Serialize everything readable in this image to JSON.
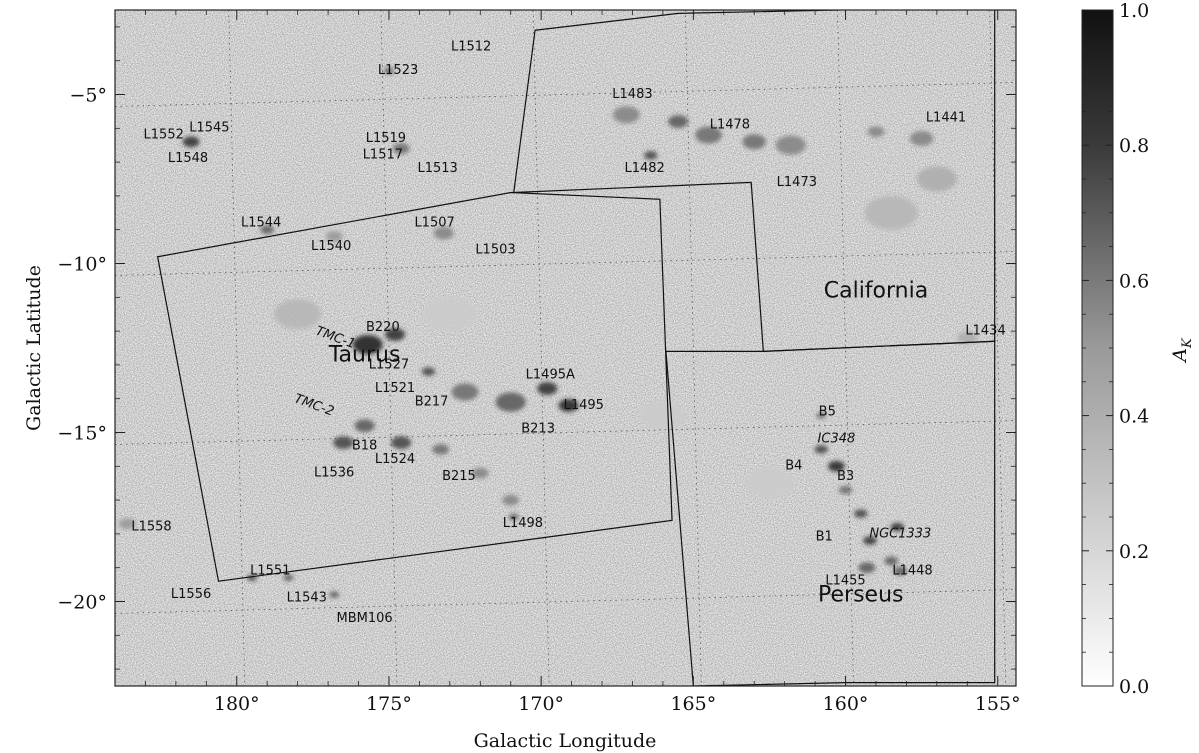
{
  "chart_data": {
    "type": "heatmap",
    "xlabel": "Galactic Longitude",
    "ylabel": "Galactic Latitude",
    "xlim": [
      184,
      154.4
    ],
    "ylim": [
      -22.5,
      -2.5
    ],
    "x_ticks": [
      180,
      175,
      170,
      165,
      160,
      155
    ],
    "x_tick_labels": [
      "180°",
      "175°",
      "170°",
      "165°",
      "160°",
      "155°"
    ],
    "y_ticks": [
      -5,
      -10,
      -15,
      -20
    ],
    "y_tick_labels": [
      "−5°",
      "−10°",
      "−15°",
      "−20°"
    ],
    "colorbar": {
      "label_main": "A",
      "label_sub": "K",
      "range": [
        0.0,
        1.0
      ],
      "ticks": [
        0.0,
        0.2,
        0.4,
        0.6,
        0.8,
        1.0
      ],
      "tick_labels": [
        "0.0",
        "0.2",
        "0.4",
        "0.6",
        "0.8",
        "1.0"
      ],
      "color_min": "#ffffff",
      "color_max": "#111111"
    },
    "region_labels": [
      {
        "name": "Taurus",
        "l": 175.8,
        "b": -12.9
      },
      {
        "name": "California",
        "l": 159.0,
        "b": -11.0
      },
      {
        "name": "Perseus",
        "l": 159.5,
        "b": -20.0
      }
    ],
    "cloud_labels": [
      {
        "name": "L1512",
        "l": 172.3,
        "b": -3.7
      },
      {
        "name": "L1523",
        "l": 174.7,
        "b": -4.4
      },
      {
        "name": "L1483",
        "l": 167.0,
        "b": -5.1
      },
      {
        "name": "L1478",
        "l": 163.8,
        "b": -6.0
      },
      {
        "name": "L1441",
        "l": 156.7,
        "b": -5.8
      },
      {
        "name": "L1552",
        "l": 182.4,
        "b": -6.3
      },
      {
        "name": "L1545",
        "l": 180.9,
        "b": -6.1
      },
      {
        "name": "L1548",
        "l": 181.6,
        "b": -7.0
      },
      {
        "name": "L1519",
        "l": 175.1,
        "b": -6.4
      },
      {
        "name": "L1517",
        "l": 175.2,
        "b": -6.9
      },
      {
        "name": "L1513",
        "l": 173.4,
        "b": -7.3
      },
      {
        "name": "L1482",
        "l": 166.6,
        "b": -7.3
      },
      {
        "name": "L1473",
        "l": 161.6,
        "b": -7.7
      },
      {
        "name": "L1544",
        "l": 179.2,
        "b": -8.9
      },
      {
        "name": "L1540",
        "l": 176.9,
        "b": -9.6
      },
      {
        "name": "L1507",
        "l": 173.5,
        "b": -8.9
      },
      {
        "name": "L1503",
        "l": 171.5,
        "b": -9.7
      },
      {
        "name": "L1434",
        "l": 155.4,
        "b": -12.1
      },
      {
        "name": "B220",
        "l": 175.2,
        "b": -12.0
      },
      {
        "name": "TMC-1",
        "l": 176.8,
        "b": -12.3,
        "italic": true,
        "rotate": 20
      },
      {
        "name": "L1527",
        "l": 175.0,
        "b": -13.1
      },
      {
        "name": "L1521",
        "l": 174.8,
        "b": -13.8
      },
      {
        "name": "L1495A",
        "l": 169.7,
        "b": -13.4
      },
      {
        "name": "TMC-2",
        "l": 177.5,
        "b": -14.3,
        "italic": true,
        "rotate": 20
      },
      {
        "name": "B217",
        "l": 173.6,
        "b": -14.2
      },
      {
        "name": "L1495",
        "l": 168.6,
        "b": -14.3
      },
      {
        "name": "B213",
        "l": 170.1,
        "b": -15.0
      },
      {
        "name": "B5",
        "l": 160.6,
        "b": -14.5
      },
      {
        "name": "IC348",
        "l": 160.3,
        "b": -15.3,
        "italic": true
      },
      {
        "name": "B18",
        "l": 175.8,
        "b": -15.5
      },
      {
        "name": "L1524",
        "l": 174.8,
        "b": -15.9
      },
      {
        "name": "B4",
        "l": 161.7,
        "b": -16.1
      },
      {
        "name": "B3",
        "l": 160.0,
        "b": -16.4
      },
      {
        "name": "L1536",
        "l": 176.8,
        "b": -16.3
      },
      {
        "name": "B215",
        "l": 172.7,
        "b": -16.4
      },
      {
        "name": "L1498",
        "l": 170.6,
        "b": -17.8
      },
      {
        "name": "B1",
        "l": 160.7,
        "b": -18.2
      },
      {
        "name": "NGC1333",
        "l": 158.2,
        "b": -18.1,
        "italic": true
      },
      {
        "name": "L1558",
        "l": 182.8,
        "b": -17.9
      },
      {
        "name": "L1448",
        "l": 157.8,
        "b": -19.2
      },
      {
        "name": "L1455",
        "l": 160.0,
        "b": -19.5
      },
      {
        "name": "L1551",
        "l": 178.9,
        "b": -19.2
      },
      {
        "name": "L1556",
        "l": 181.5,
        "b": -19.9
      },
      {
        "name": "L1543",
        "l": 177.7,
        "b": -20.0
      },
      {
        "name": "MBM106",
        "l": 175.8,
        "b": -20.6
      }
    ],
    "dark_clumps": [
      {
        "l": 175.7,
        "b": -12.4,
        "s": 0.9,
        "v": 1.0
      },
      {
        "l": 174.8,
        "b": -12.1,
        "s": 0.6,
        "v": 0.9
      },
      {
        "l": 173.7,
        "b": -13.2,
        "s": 0.4,
        "v": 0.8
      },
      {
        "l": 169.8,
        "b": -13.7,
        "s": 0.6,
        "v": 0.9
      },
      {
        "l": 169.1,
        "b": -14.2,
        "s": 0.6,
        "v": 0.95
      },
      {
        "l": 171.0,
        "b": -14.1,
        "s": 0.9,
        "v": 0.7
      },
      {
        "l": 172.5,
        "b": -13.8,
        "s": 0.8,
        "v": 0.6
      },
      {
        "l": 176.5,
        "b": -15.3,
        "s": 0.6,
        "v": 0.8
      },
      {
        "l": 175.8,
        "b": -14.8,
        "s": 0.6,
        "v": 0.7
      },
      {
        "l": 174.6,
        "b": -15.3,
        "s": 0.6,
        "v": 0.8
      },
      {
        "l": 173.3,
        "b": -15.5,
        "s": 0.5,
        "v": 0.6
      },
      {
        "l": 172.0,
        "b": -16.2,
        "s": 0.5,
        "v": 0.5
      },
      {
        "l": 171.0,
        "b": -17.0,
        "s": 0.5,
        "v": 0.5
      },
      {
        "l": 170.9,
        "b": -17.5,
        "s": 0.3,
        "v": 0.7
      },
      {
        "l": 181.5,
        "b": -6.4,
        "s": 0.5,
        "v": 0.9
      },
      {
        "l": 179.0,
        "b": -9.0,
        "s": 0.4,
        "v": 0.7
      },
      {
        "l": 176.8,
        "b": -9.2,
        "s": 0.5,
        "v": 0.4
      },
      {
        "l": 173.2,
        "b": -9.1,
        "s": 0.6,
        "v": 0.5
      },
      {
        "l": 174.6,
        "b": -6.6,
        "s": 0.5,
        "v": 0.6
      },
      {
        "l": 175.0,
        "b": -4.3,
        "s": 0.3,
        "v": 0.7
      },
      {
        "l": 167.2,
        "b": -5.6,
        "s": 0.8,
        "v": 0.5
      },
      {
        "l": 166.4,
        "b": -6.8,
        "s": 0.4,
        "v": 0.8
      },
      {
        "l": 165.5,
        "b": -5.8,
        "s": 0.6,
        "v": 0.7
      },
      {
        "l": 164.5,
        "b": -6.2,
        "s": 0.8,
        "v": 0.6
      },
      {
        "l": 163.0,
        "b": -6.4,
        "s": 0.7,
        "v": 0.6
      },
      {
        "l": 161.8,
        "b": -6.5,
        "s": 0.9,
        "v": 0.5
      },
      {
        "l": 157.5,
        "b": -6.3,
        "s": 0.7,
        "v": 0.5
      },
      {
        "l": 159.0,
        "b": -6.1,
        "s": 0.5,
        "v": 0.5
      },
      {
        "l": 158.5,
        "b": -8.5,
        "s": 1.6,
        "v": 0.25
      },
      {
        "l": 157.0,
        "b": -7.5,
        "s": 1.2,
        "v": 0.3
      },
      {
        "l": 160.8,
        "b": -14.5,
        "s": 0.3,
        "v": 0.6
      },
      {
        "l": 160.8,
        "b": -15.5,
        "s": 0.4,
        "v": 0.8
      },
      {
        "l": 160.3,
        "b": -16.0,
        "s": 0.5,
        "v": 0.95
      },
      {
        "l": 160.0,
        "b": -16.7,
        "s": 0.4,
        "v": 0.6
      },
      {
        "l": 159.5,
        "b": -17.4,
        "s": 0.4,
        "v": 0.8
      },
      {
        "l": 159.2,
        "b": -18.2,
        "s": 0.4,
        "v": 0.9
      },
      {
        "l": 158.3,
        "b": -17.8,
        "s": 0.4,
        "v": 0.9
      },
      {
        "l": 158.5,
        "b": -18.8,
        "s": 0.4,
        "v": 0.7
      },
      {
        "l": 159.3,
        "b": -19.0,
        "s": 0.5,
        "v": 0.7
      },
      {
        "l": 158.2,
        "b": -19.1,
        "s": 0.4,
        "v": 0.7
      },
      {
        "l": 179.5,
        "b": -19.3,
        "s": 0.3,
        "v": 0.8
      },
      {
        "l": 178.3,
        "b": -19.3,
        "s": 0.3,
        "v": 0.7
      },
      {
        "l": 176.8,
        "b": -19.8,
        "s": 0.3,
        "v": 0.7
      },
      {
        "l": 183.6,
        "b": -17.7,
        "s": 0.5,
        "v": 0.4
      },
      {
        "l": 178.0,
        "b": -11.5,
        "s": 1.4,
        "v": 0.25
      },
      {
        "l": 173.0,
        "b": -11.5,
        "s": 1.6,
        "v": 0.15
      },
      {
        "l": 166.0,
        "b": -14.5,
        "s": 1.4,
        "v": 0.15
      },
      {
        "l": 156.0,
        "b": -12.2,
        "s": 0.6,
        "v": 0.3
      },
      {
        "l": 162.5,
        "b": -16.5,
        "s": 1.5,
        "v": 0.15
      }
    ],
    "region_boundaries": [
      {
        "name": "taurus-box",
        "points": [
          [
            182.6,
            -9.8
          ],
          [
            180.6,
            -19.4
          ],
          [
            165.7,
            -17.6
          ],
          [
            166.1,
            -8.1
          ],
          [
            171.0,
            -7.9
          ]
        ]
      },
      {
        "name": "california-box",
        "points": [
          [
            170.2,
            -3.1
          ],
          [
            165.5,
            -2.6
          ],
          [
            155.1,
            -2.4
          ],
          [
            155.1,
            -12.3
          ],
          [
            162.7,
            -12.6
          ],
          [
            163.1,
            -7.6
          ],
          [
            170.9,
            -7.9
          ]
        ]
      },
      {
        "name": "perseus-box",
        "points": [
          [
            165.9,
            -12.6
          ],
          [
            162.7,
            -12.6
          ],
          [
            155.1,
            -12.3
          ],
          [
            155.1,
            -22.4
          ],
          [
            160.0,
            -22.4
          ],
          [
            165.0,
            -22.5
          ]
        ]
      }
    ],
    "grid": true
  }
}
